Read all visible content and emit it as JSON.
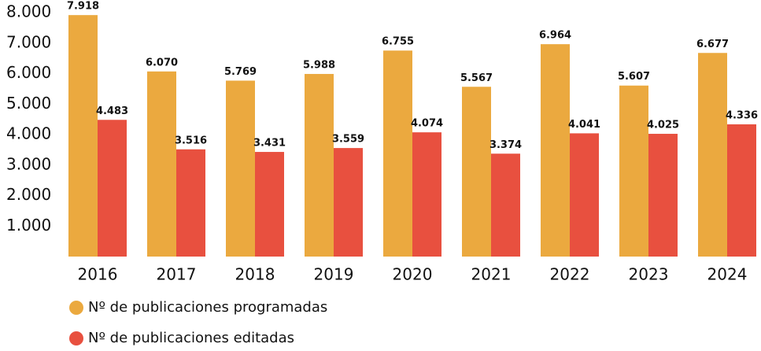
{
  "chart_data": {
    "type": "bar",
    "categories": [
      "2016",
      "2017",
      "2018",
      "2019",
      "2020",
      "2021",
      "2022",
      "2023",
      "2024"
    ],
    "series": [
      {
        "name": "Nº de publicaciones programadas",
        "color": "#eba93f",
        "values": [
          7918,
          6070,
          5769,
          5988,
          6755,
          5567,
          6964,
          5607,
          6677
        ],
        "value_labels": [
          "7.918",
          "6.070",
          "5.769",
          "5.988",
          "6.755",
          "5.567",
          "6.964",
          "5.607",
          "6.677"
        ]
      },
      {
        "name": "Nº de publicaciones editadas",
        "color": "#e8503f",
        "values": [
          4483,
          3516,
          3431,
          3559,
          4074,
          3374,
          4041,
          4025,
          4336
        ],
        "value_labels": [
          "4.483",
          "3.516",
          "3.431",
          "3.559",
          "4.074",
          "3.374",
          "4.041",
          "4.025",
          "4.336"
        ]
      }
    ],
    "ylim": [
      0,
      8000
    ],
    "yticks": [
      {
        "value": 1000,
        "label": "1.000"
      },
      {
        "value": 2000,
        "label": "2.000"
      },
      {
        "value": 3000,
        "label": "3.000"
      },
      {
        "value": 4000,
        "label": "4.000"
      },
      {
        "value": 5000,
        "label": "5.000"
      },
      {
        "value": 6000,
        "label": "6.000"
      },
      {
        "value": 7000,
        "label": "7.000"
      },
      {
        "value": 8000,
        "label": "8.000"
      }
    ]
  }
}
